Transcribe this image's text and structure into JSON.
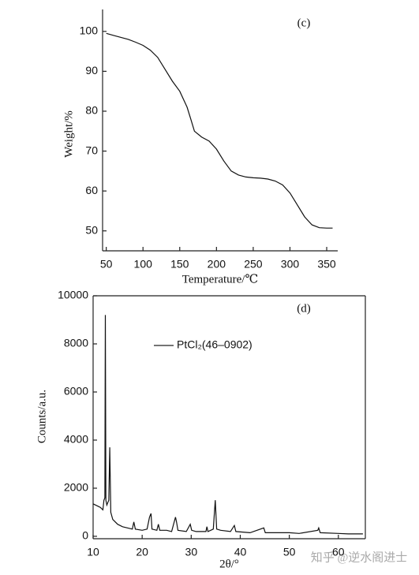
{
  "chart_data": [
    {
      "type": "line",
      "annotation": "(c)",
      "x_label": "Temperature/℃",
      "y_label": "Weight/%",
      "x": [
        50,
        60,
        70,
        80,
        90,
        100,
        110,
        120,
        130,
        140,
        150,
        160,
        165,
        170,
        180,
        190,
        200,
        210,
        220,
        230,
        240,
        250,
        260,
        270,
        280,
        290,
        300,
        310,
        320,
        330,
        340,
        350,
        358
      ],
      "series": [
        {
          "color": "#111111",
          "values": [
            99.5,
            99,
            98.5,
            98,
            97.3,
            96.5,
            95.3,
            93.5,
            90.5,
            87.5,
            85,
            81,
            78,
            75,
            73.5,
            72.5,
            70.5,
            67.5,
            65,
            64,
            63.5,
            63.3,
            63.2,
            63,
            62.5,
            61.5,
            59.5,
            56.5,
            53.5,
            51.5,
            50.8,
            50.7,
            50.7
          ]
        }
      ],
      "xlim": [
        45,
        365
      ],
      "xticks": [
        50,
        100,
        150,
        200,
        250,
        300,
        350
      ],
      "ylim": [
        45,
        105.5
      ],
      "yticks": [
        50,
        60,
        70,
        80,
        90,
        100
      ],
      "grid": false,
      "box": false
    },
    {
      "type": "line",
      "annotation": "(d)",
      "x_label": "2θ/°",
      "y_label": "Counts/a.u.",
      "x": [
        10,
        11,
        11.5,
        12,
        12.2,
        12.4,
        12.5,
        12.6,
        12.8,
        13.0,
        13.2,
        13.4,
        13.6,
        14,
        15,
        16,
        17,
        18,
        18.3,
        18.6,
        20,
        21,
        21.5,
        21.8,
        22,
        23,
        23.3,
        23.6,
        25,
        26,
        26.8,
        27,
        27.3,
        29,
        29.8,
        30.1,
        31,
        33,
        33.2,
        33.4,
        34.5,
        34.9,
        35.2,
        36,
        38,
        38.8,
        39.1,
        42,
        44.8,
        45.1,
        48,
        50,
        52,
        55.8,
        56,
        56.3,
        60,
        62,
        65
      ],
      "series": [
        {
          "name": "PtCl₂(46–0902)",
          "color": "#111111",
          "values": [
            1350,
            1250,
            1200,
            1100,
            1500,
            1600,
            9200,
            1500,
            1300,
            1400,
            1500,
            3700,
            1000,
            700,
            500,
            400,
            350,
            300,
            600,
            300,
            250,
            300,
            800,
            950,
            300,
            250,
            500,
            250,
            250,
            200,
            800,
            600,
            250,
            200,
            500,
            250,
            200,
            200,
            400,
            200,
            300,
            1500,
            300,
            250,
            200,
            450,
            200,
            150,
            350,
            150,
            150,
            150,
            120,
            250,
            350,
            150,
            120,
            100,
            100
          ]
        }
      ],
      "xlim": [
        10,
        65.5
      ],
      "xticks": [
        10,
        20,
        30,
        40,
        50,
        60
      ],
      "ylim": [
        -100,
        10000
      ],
      "yticks": [
        0,
        2000,
        4000,
        6000,
        8000,
        10000
      ],
      "grid": false,
      "box": true
    }
  ],
  "watermark": "知乎 @逆水阁进士"
}
